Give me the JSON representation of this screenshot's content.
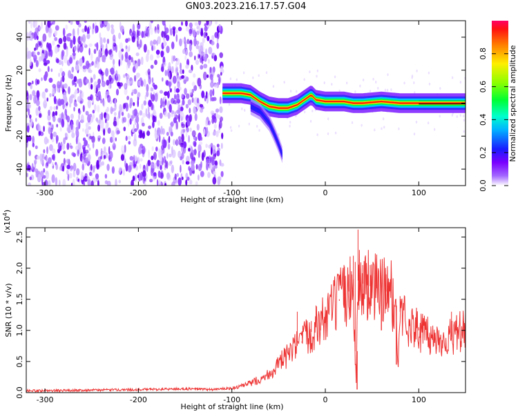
{
  "title": "GN03.2023.216.17.57.G04",
  "colors": {
    "snr_line": "#ee3333",
    "axes": "#000000"
  },
  "colorbar": {
    "label": "Normalized spectral amplitude",
    "ticks": [
      "0.0",
      "0.2",
      "0.4",
      "0.6",
      "0.8"
    ]
  },
  "chart_data": [
    {
      "type": "heatmap",
      "xlabel": "Height of straight line (km)",
      "ylabel": "Frequency (Hz)",
      "xlim": [
        -320,
        150
      ],
      "ylim": [
        -50,
        50
      ],
      "xticks": [
        -300,
        -200,
        -100,
        0,
        100
      ],
      "yticks": [
        -40,
        -20,
        0,
        20,
        40
      ],
      "xtick_labels": [
        "-300",
        "-200",
        "-100",
        "0",
        "100"
      ],
      "ytick_labels": [
        "-40",
        "-20",
        "0",
        "20",
        "40"
      ],
      "colormap": "rainbow (violet = 0.0 to red/magenta = 1.0)",
      "colorbar_range": [
        0.0,
        1.0
      ],
      "description": "Noise speckle over all frequencies for heights -320 to -110 km; a coherent narrow band near 0-8 Hz from -110 km to 150 km, with a branch dropping to about -35 Hz near -50 km",
      "ridge": {
        "x": [
          -110,
          -100,
          -90,
          -80,
          -75,
          -70,
          -60,
          -50,
          -40,
          -30,
          -20,
          -15,
          -10,
          0,
          10,
          20,
          30,
          40,
          60,
          80,
          100,
          120,
          150
        ],
        "y": [
          6,
          6,
          6,
          5,
          3,
          1,
          -2,
          -3,
          -3,
          -1,
          3,
          5,
          2,
          1,
          1,
          1,
          0,
          0,
          1,
          0,
          0,
          0,
          0
        ]
      },
      "ridge_branch": {
        "x": [
          -80,
          -70,
          -60,
          -55,
          -50,
          -45
        ],
        "y": [
          -2,
          -5,
          -12,
          -18,
          -25,
          -33
        ]
      }
    },
    {
      "type": "line",
      "xlabel": "Height of straight line (km)",
      "ylabel": "SNR (10 * v/v)",
      "scale_label": "(x10",
      "scale_exponent": "4",
      "xlim": [
        -320,
        150
      ],
      "ylim": [
        0,
        2.65
      ],
      "xticks": [
        -300,
        -200,
        -100,
        0,
        100
      ],
      "yticks": [
        0.0,
        0.5,
        1.0,
        1.5,
        2.0,
        2.5
      ],
      "xtick_labels": [
        "-300",
        "-200",
        "-100",
        "0",
        "100"
      ],
      "ytick_labels": [
        "0.0",
        "0.5",
        "1.0",
        "1.5",
        "2.0",
        "2.5"
      ],
      "series": [
        {
          "x": [
            -320,
            -300,
            -250,
            -200,
            -150,
            -120,
            -100,
            -90,
            -80,
            -70,
            -60,
            -50,
            -40,
            -30,
            -20,
            -10,
            0,
            10,
            20,
            30,
            33,
            35,
            40,
            50,
            60,
            70,
            75,
            78,
            80,
            90,
            100,
            110,
            120,
            130,
            140,
            150
          ],
          "y": [
            0.03,
            0.03,
            0.04,
            0.05,
            0.06,
            0.05,
            0.07,
            0.1,
            0.15,
            0.22,
            0.3,
            0.45,
            0.6,
            0.75,
            0.9,
            1.05,
            1.2,
            1.4,
            1.55,
            1.7,
            0.15,
            1.8,
            1.75,
            1.7,
            1.65,
            1.6,
            1.35,
            0.45,
            1.3,
            1.1,
            1.0,
            0.9,
            0.85,
            0.85,
            0.95,
            1.0
          ],
          "spikes": {
            "x": [
              -30,
              -25,
              -20,
              -15,
              -10,
              -5,
              5,
              15,
              20,
              25,
              28,
              30,
              32,
              35,
              38,
              40,
              45,
              48,
              55,
              65,
              80,
              100,
              135,
              148
            ],
            "y": [
              1.3,
              0.8,
              1.0,
              1.15,
              1.4,
              1.0,
              1.3,
              1.5,
              2.05,
              1.9,
              1.95,
              2.2,
              2.1,
              2.62,
              2.0,
              2.05,
              1.9,
              2.05,
              2.0,
              1.9,
              1.55,
              1.05,
              1.3,
              1.15
            ]
          }
        }
      ]
    }
  ]
}
